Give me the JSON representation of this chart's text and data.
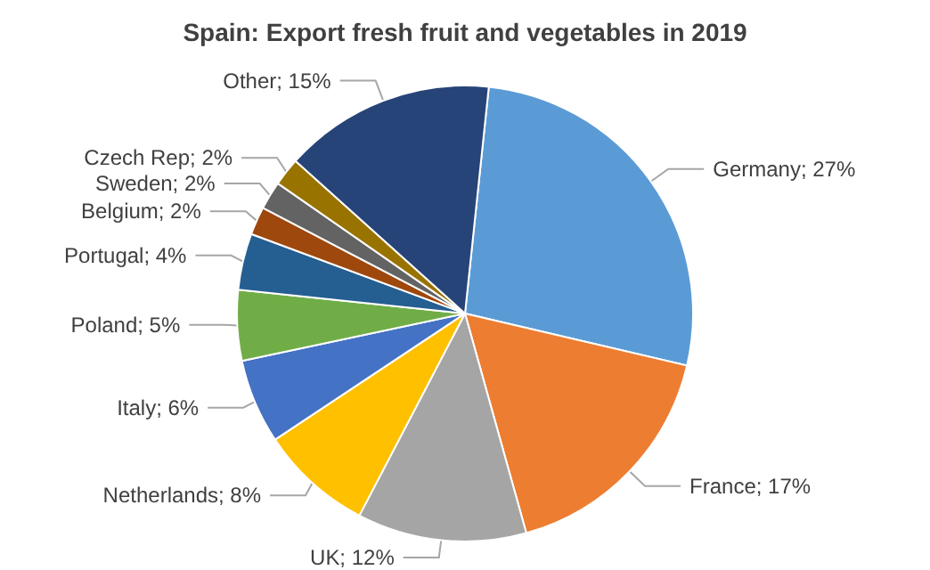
{
  "chart_data": {
    "type": "pie",
    "title": "Spain: Export fresh fruit and vegetables in 2019",
    "categories": [
      "Germany",
      "France",
      "UK",
      "Netherlands",
      "Italy",
      "Poland",
      "Portugal",
      "Belgium",
      "Sweden",
      "Czech Rep",
      "Other"
    ],
    "values": [
      27,
      17,
      12,
      8,
      6,
      5,
      4,
      2,
      2,
      2,
      15
    ],
    "value_labels": [
      "; 27%",
      "; 17%",
      "; 12%",
      "; 8%",
      "; 6%",
      "; 5%",
      "; 4%",
      "; 2%",
      "; 2%",
      "; 2%",
      "; 15%"
    ],
    "colors": [
      "#5b9bd5",
      "#ed7d31",
      "#a5a5a5",
      "#ffc000",
      "#4472c4",
      "#70ad47",
      "#255e91",
      "#9e480e",
      "#636363",
      "#997300",
      "#264478"
    ],
    "legend": false
  }
}
